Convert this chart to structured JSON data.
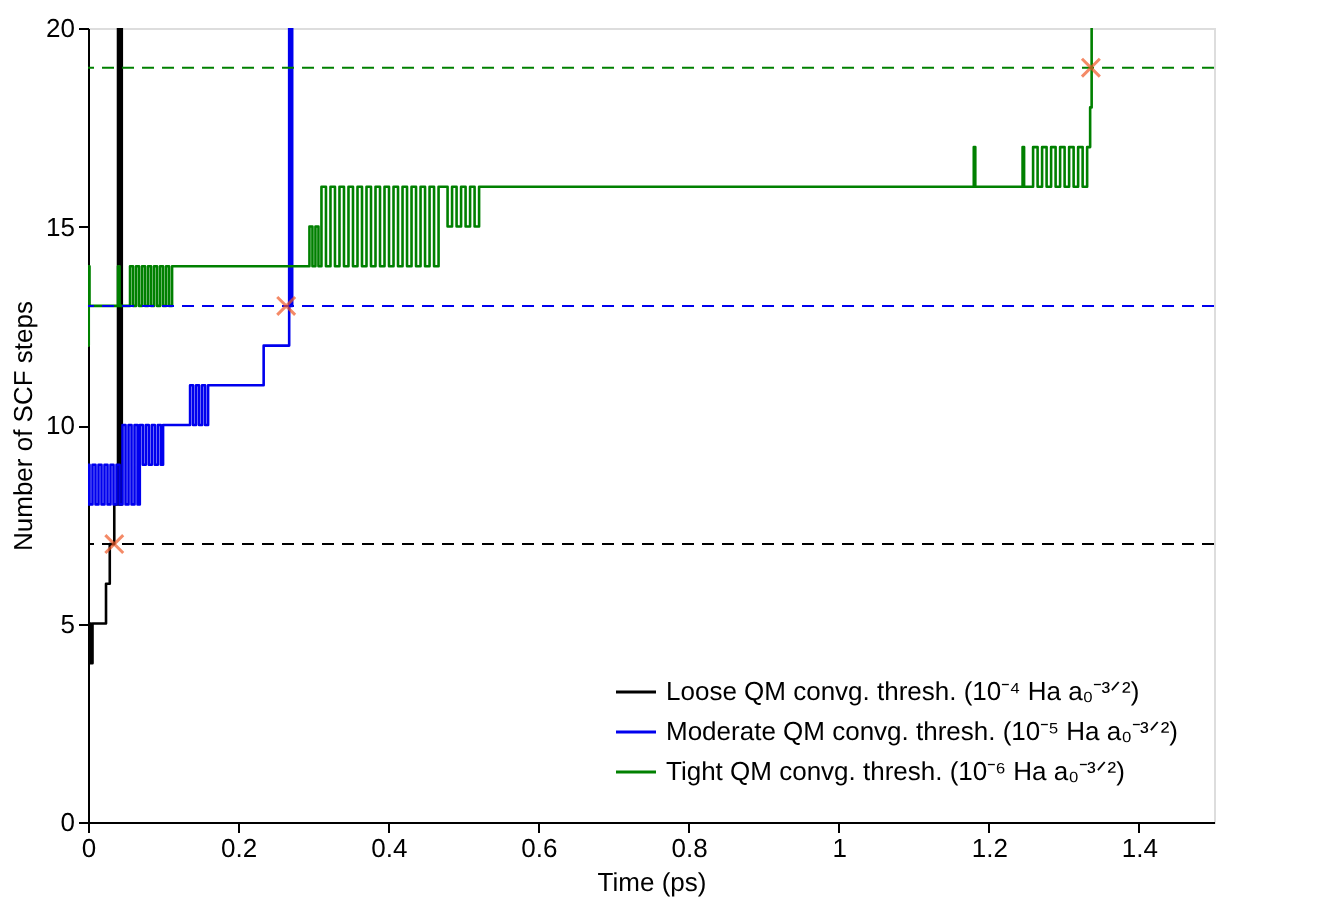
{
  "chart_data": {
    "type": "step",
    "xlabel": "Time (ps)",
    "ylabel": "Number of SCF steps",
    "xlim": [
      0,
      1.5
    ],
    "ylim": [
      0,
      20
    ],
    "xticks": [
      0,
      0.2,
      0.4,
      0.6,
      0.8,
      1,
      1.2,
      1.4
    ],
    "yticks": [
      0,
      5,
      10,
      15,
      20
    ],
    "grid": false,
    "legend": "bottom right",
    "line_style": "solid",
    "series": [
      {
        "name": "Loose QM convg. thresh. (10⁻⁴ Ha a₀⁻³ᐟ²)",
        "color": "#000000",
        "x": [
          0,
          0.002,
          0.004,
          0.006,
          0.024,
          0.029,
          0.035,
          0.04,
          0.042,
          0.043,
          0.044,
          0.045
        ],
        "values": [
          4,
          5,
          4,
          5,
          6,
          7,
          8,
          20,
          8,
          20,
          8,
          20
        ]
      },
      {
        "name": "Moderate QM convg. thresh. (10⁻⁵ Ha a₀⁻³ᐟ²)",
        "color": "#0000ee",
        "x": [
          0,
          0.001,
          0.002,
          0.006,
          0.01,
          0.014,
          0.018,
          0.022,
          0.026,
          0.03,
          0.034,
          0.038,
          0.042,
          0.046,
          0.05,
          0.054,
          0.058,
          0.062,
          0.066,
          0.069,
          0.073,
          0.077,
          0.081,
          0.085,
          0.089,
          0.093,
          0.097,
          0.1,
          0.136,
          0.14,
          0.144,
          0.148,
          0.152,
          0.156,
          0.16,
          0.234,
          0.268,
          0.27,
          0.272
        ],
        "values": [
          8,
          9,
          8,
          9,
          8,
          9,
          8,
          9,
          8,
          9,
          8,
          9,
          8,
          10,
          8,
          10,
          8,
          10,
          8,
          10,
          9,
          10,
          9,
          10,
          9,
          10,
          9,
          10,
          11,
          10,
          11,
          10,
          11,
          10,
          11,
          12,
          20,
          13,
          20
        ]
      },
      {
        "name": "Tight QM convg. thresh. (10⁻⁶ Ha a₀⁻³ᐟ²)",
        "color": "#008000",
        "x": [
          0,
          0.001,
          0.002,
          0.04,
          0.042,
          0.056,
          0.06,
          0.064,
          0.068,
          0.072,
          0.076,
          0.08,
          0.084,
          0.088,
          0.092,
          0.096,
          0.1,
          0.104,
          0.108,
          0.112,
          0.115,
          0.295,
          0.299,
          0.303,
          0.307,
          0.311,
          0.317,
          0.323,
          0.329,
          0.335,
          0.341,
          0.347,
          0.353,
          0.359,
          0.365,
          0.371,
          0.377,
          0.383,
          0.389,
          0.395,
          0.401,
          0.407,
          0.413,
          0.419,
          0.425,
          0.431,
          0.437,
          0.443,
          0.449,
          0.455,
          0.461,
          0.467,
          0.473,
          0.479,
          0.485,
          0.491,
          0.497,
          0.503,
          0.509,
          0.515,
          0.521,
          0.527,
          1.18,
          1.182,
          1.245,
          1.247,
          1.259,
          1.265,
          1.271,
          1.277,
          1.283,
          1.289,
          1.295,
          1.301,
          1.307,
          1.313,
          1.319,
          1.325,
          1.331,
          1.335,
          1.337
        ],
        "values": [
          12,
          14,
          13,
          14,
          13,
          14,
          13,
          14,
          13,
          14,
          13,
          14,
          13,
          14,
          13,
          14,
          13,
          14,
          13,
          14,
          14,
          15,
          14,
          15,
          14,
          16,
          14,
          16,
          14,
          16,
          14,
          16,
          14,
          16,
          14,
          16,
          14,
          16,
          14,
          16,
          14,
          16,
          14,
          16,
          14,
          16,
          14,
          16,
          14,
          16,
          14,
          16,
          16,
          15,
          16,
          15,
          16,
          15,
          16,
          15,
          16,
          16,
          17,
          16,
          17,
          16,
          17,
          16,
          17,
          16,
          17,
          16,
          17,
          16,
          17,
          16,
          17,
          16,
          17,
          18,
          20
        ]
      },
      {
        "type": "scatter",
        "marker": "cross",
        "color": "#f05a28",
        "x": [
          0.035,
          0.264,
          1.336
        ],
        "values": [
          7,
          13,
          19
        ]
      }
    ],
    "ref_lines": [
      {
        "axis": "y",
        "value": 7,
        "color": "#000000",
        "line_style": "dashed"
      },
      {
        "axis": "y",
        "value": 13,
        "color": "#0000ee",
        "line_style": "dashed"
      },
      {
        "axis": "y",
        "value": 19,
        "color": "#008000",
        "line_style": "dashed"
      }
    ]
  }
}
